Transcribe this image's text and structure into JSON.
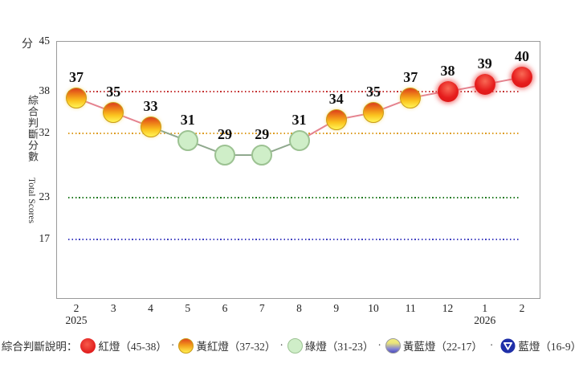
{
  "chart_data": {
    "type": "line",
    "unit_label": "分",
    "ylabel_zh": "綜合判斷分數",
    "ylabel_en": "Total Scores",
    "x_categories": [
      "2",
      "3",
      "4",
      "5",
      "6",
      "7",
      "8",
      "9",
      "10",
      "11",
      "12",
      "1",
      "2"
    ],
    "x_year_labels": [
      {
        "index": 0,
        "label": "2025"
      },
      {
        "index": 11,
        "label": "2026"
      }
    ],
    "values": [
      37,
      35,
      33,
      31,
      29,
      29,
      31,
      34,
      35,
      37,
      38,
      39,
      40
    ],
    "point_types": [
      "yellowred",
      "yellowred",
      "yellowred",
      "green",
      "green",
      "green",
      "green",
      "yellowred",
      "yellowred",
      "yellowred",
      "red",
      "red",
      "red"
    ],
    "segment_colors": [
      "pink",
      "pink",
      "green",
      "green",
      "green",
      "green",
      "pink",
      "pink",
      "pink",
      "pink",
      "pink",
      "pink"
    ],
    "y_ticks": [
      45,
      38,
      32,
      23,
      17
    ],
    "ylim": [
      9,
      45
    ],
    "reference_lines": [
      {
        "value": 38,
        "color": "#c43030"
      },
      {
        "value": 32,
        "color": "#dd9c20"
      },
      {
        "value": 23,
        "color": "#207a20"
      },
      {
        "value": 17,
        "color": "#4343c2"
      }
    ],
    "grid": "dotted horizontal reference lines only",
    "legend_position": "bottom"
  },
  "legend": {
    "title": "綜合判斷說明：",
    "separator": "·",
    "items": [
      {
        "label": "紅燈（45-38）",
        "type": "red"
      },
      {
        "label": "黃紅燈（37-32）",
        "type": "yellowred"
      },
      {
        "label": "綠燈（31-23）",
        "type": "green"
      },
      {
        "label": "黃藍燈（22-17）",
        "type": "yellowblue"
      },
      {
        "label": "藍燈（16-9）",
        "type": "blue"
      }
    ]
  },
  "colors": {
    "red_lamp": "#e01c1c",
    "yellowred_lamp_top": "#dd3f1c",
    "yellowred_lamp_bottom": "#ffee4f",
    "green_lamp": "#cfeec8",
    "yellowblue_lamp_top": "#f2ee7d",
    "yellowblue_lamp_bottom": "#4d4dbb",
    "blue_lamp": "#1f2fa8",
    "line_pink": "#e5838f",
    "line_green": "#90a98e"
  }
}
